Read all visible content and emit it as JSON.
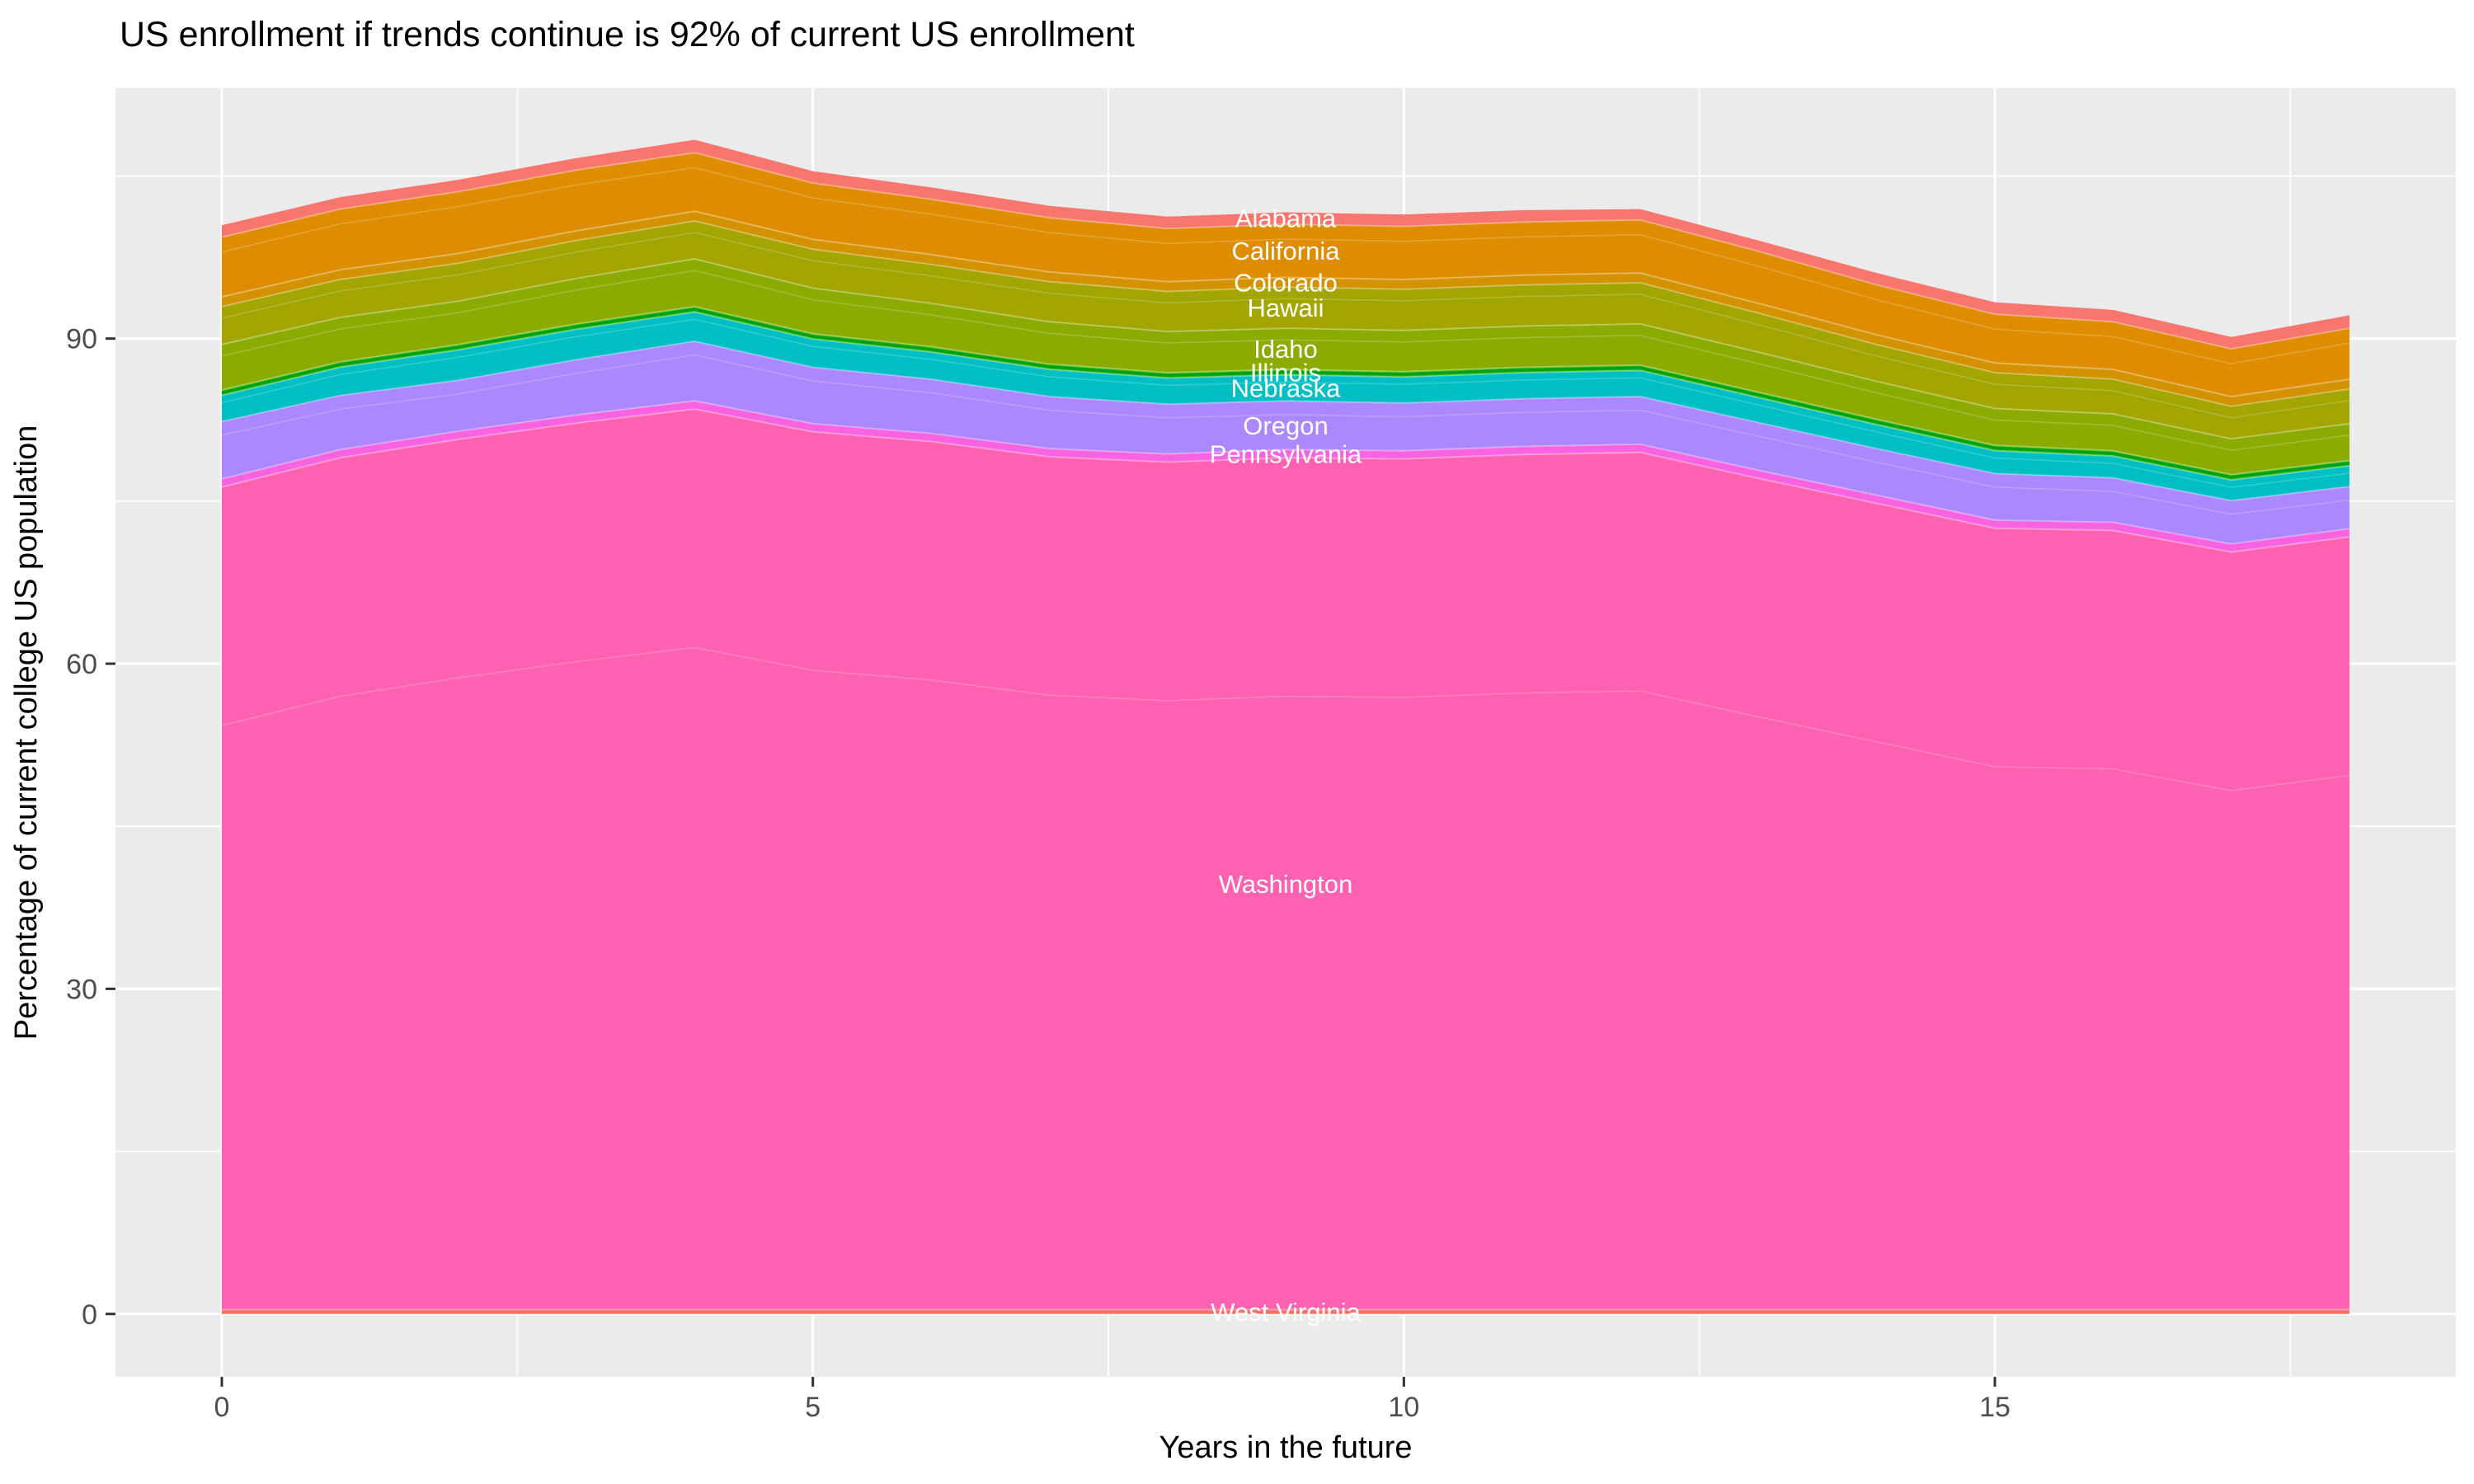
{
  "title": "US enrollment if trends continue is 92% of current US enrollment",
  "colors": {
    "page_background": "#FFFFFF",
    "panel_background": "#EBEBEB",
    "gridline": "#FFFFFF",
    "tick_mark": "#333333",
    "tick_label": "#4D4D4D",
    "axis_title": "#000000",
    "area_label_text": "#FFFFFF"
  },
  "chart_data": {
    "type": "area",
    "stacked": true,
    "title": "US enrollment if trends continue is 92% of current US enrollment",
    "xlabel": "Years in the future",
    "ylabel": "Percentage of current college US population",
    "x": [
      0,
      1,
      2,
      3,
      4,
      5,
      6,
      7,
      8,
      9,
      10,
      11,
      12,
      13,
      14,
      15,
      16,
      17,
      18
    ],
    "xlim": [
      -0.9,
      18.9
    ],
    "ylim": [
      -5.8,
      113.1
    ],
    "x_ticks": [
      0,
      5,
      10,
      15
    ],
    "x_tick_labels": [
      "0",
      "5",
      "10",
      "15"
    ],
    "x_minor_ticks": [
      2.5,
      7.5,
      12.5,
      17.5
    ],
    "y_ticks": [
      0,
      30,
      60,
      90
    ],
    "y_tick_labels": [
      "0",
      "30",
      "60",
      "90"
    ],
    "y_minor_ticks": [
      15,
      45,
      75,
      105
    ],
    "grid": "on",
    "legend_position": "none (direct white labels at x=9)",
    "label_year_index": 9,
    "series": [
      {
        "name": "West Virginia",
        "color": "#FB6E63",
        "values": [
          0.4,
          0.4,
          0.4,
          0.4,
          0.4,
          0.4,
          0.4,
          0.4,
          0.4,
          0.4,
          0.4,
          0.4,
          0.4,
          0.4,
          0.4,
          0.4,
          0.4,
          0.4,
          0.4
        ]
      },
      {
        "name": "Washington",
        "color": "#FF62B0",
        "values": [
          75.9,
          78.6,
          80.3,
          81.8,
          83.1,
          81.0,
          80.1,
          78.7,
          78.2,
          78.6,
          78.5,
          78.9,
          79.1,
          76.7,
          74.4,
          72.1,
          71.9,
          69.9,
          71.3
        ]
      },
      {
        "name": "Pennsylvania",
        "color": "#F763E0",
        "values": [
          0.75,
          0.75,
          0.75,
          0.75,
          0.75,
          0.75,
          0.75,
          0.75,
          0.75,
          0.75,
          0.75,
          0.75,
          0.75,
          0.75,
          0.75,
          0.75,
          0.75,
          0.75,
          0.75
        ]
      },
      {
        "name": "Oregon",
        "color": "#AC88FF",
        "values": [
          5.3,
          5.0,
          4.7,
          5.1,
          5.5,
          5.2,
          5.0,
          4.8,
          4.6,
          4.5,
          4.4,
          4.4,
          4.4,
          4.4,
          4.3,
          4.3,
          4.1,
          4.0,
          3.9
        ]
      },
      {
        "name": "Nebraska",
        "color": "#00BFC4",
        "values": [
          2.4,
          2.6,
          2.8,
          2.8,
          2.7,
          2.6,
          2.5,
          2.5,
          2.4,
          2.4,
          2.4,
          2.4,
          2.4,
          2.3,
          2.2,
          2.1,
          2.0,
          1.9,
          1.9
        ]
      },
      {
        "name": "Illinois",
        "color": "#24B700",
        "values": [
          0.5,
          0.5,
          0.5,
          0.5,
          0.5,
          0.5,
          0.5,
          0.5,
          0.5,
          0.5,
          0.5,
          0.5,
          0.5,
          0.5,
          0.5,
          0.5,
          0.5,
          0.5,
          0.5
        ]
      },
      {
        "name": "Idaho",
        "color": "#8CAB00",
        "values": [
          4.2,
          4.1,
          4.0,
          4.2,
          4.4,
          4.2,
          4.0,
          3.9,
          3.8,
          3.8,
          3.8,
          3.8,
          3.8,
          3.7,
          3.5,
          3.4,
          3.4,
          3.3,
          3.4
        ]
      },
      {
        "name": "Hawaii",
        "color": "#A3A500",
        "values": [
          3.5,
          3.5,
          3.5,
          3.5,
          3.5,
          3.6,
          3.6,
          3.7,
          3.7,
          3.8,
          3.8,
          3.8,
          3.8,
          3.6,
          3.4,
          3.3,
          3.2,
          3.0,
          3.2
        ]
      },
      {
        "name": "Colorado",
        "color": "#D39200",
        "values": [
          0.9,
          0.9,
          0.9,
          0.9,
          0.9,
          0.9,
          0.9,
          0.9,
          0.9,
          0.9,
          0.9,
          0.9,
          0.9,
          0.9,
          0.9,
          0.9,
          0.9,
          0.9,
          0.9
        ]
      },
      {
        "name": "California",
        "color": "#DE8C00",
        "values": [
          5.5,
          5.6,
          5.7,
          5.6,
          5.4,
          5.2,
          5.1,
          5.0,
          4.9,
          4.9,
          4.9,
          4.9,
          4.9,
          4.8,
          4.6,
          4.5,
          4.4,
          4.4,
          4.7
        ]
      },
      {
        "name": "Alabama",
        "color": "#F8766D",
        "values": [
          1.1,
          1.1,
          1.1,
          1.1,
          1.2,
          1.1,
          1.1,
          1.1,
          1.1,
          1.1,
          1.1,
          1.1,
          1.0,
          1.0,
          1.1,
          1.1,
          1.1,
          1.1,
          1.2
        ]
      }
    ]
  }
}
